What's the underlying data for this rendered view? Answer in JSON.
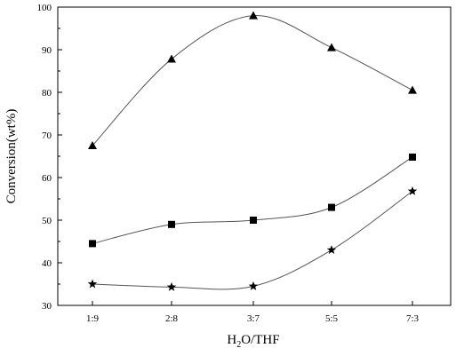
{
  "chart_data": {
    "type": "scatter",
    "title": "",
    "xlabel": {
      "main": "H",
      "sub": "2",
      "rest": "O/THF"
    },
    "ylabel": "Conversion(wt%)",
    "categories": [
      "1:9",
      "2:8",
      "3:7",
      "5:5",
      "7:3"
    ],
    "ylim": [
      30,
      100
    ],
    "yticks": [
      "30",
      "40",
      "50",
      "60",
      "70",
      "80",
      "90",
      "100"
    ],
    "grid": false,
    "series": [
      {
        "marker": "triangle",
        "values": [
          67.5,
          87.8,
          98.0,
          90.5,
          80.5
        ]
      },
      {
        "marker": "square",
        "values": [
          44.5,
          49.0,
          50.0,
          53.0,
          64.8
        ]
      },
      {
        "marker": "star",
        "values": [
          35.0,
          34.3,
          34.5,
          43.0,
          56.8
        ]
      }
    ],
    "colors": {
      "line": "#555555",
      "marker": "#000000",
      "axis": "#000000"
    }
  }
}
